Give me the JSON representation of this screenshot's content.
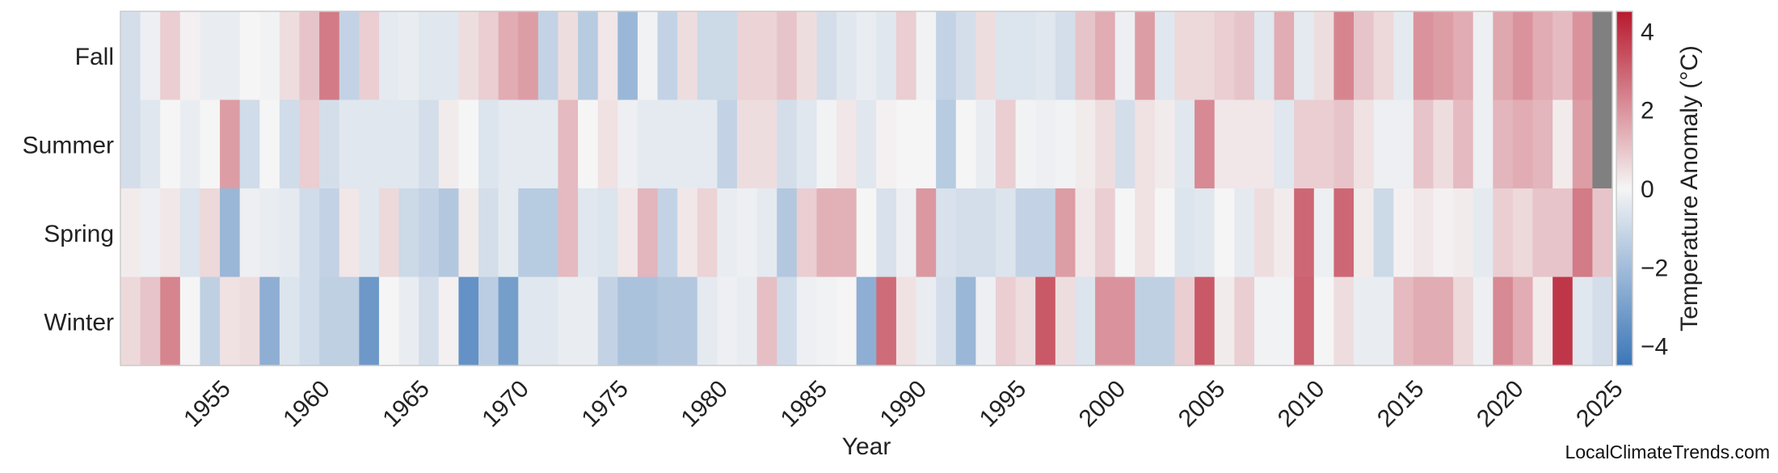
{
  "chart_data": {
    "type": "heatmap",
    "title": "",
    "xlabel": "Year",
    "colorbar_label": "Temperature Anomaly (°C)",
    "colorbar_range": [
      -4.5,
      4.5
    ],
    "colorbar_ticks": [
      -4,
      -2,
      0,
      2,
      4
    ],
    "colormap_colors": {
      "negative": "#3b76b8",
      "neutral": "#f5f5f5",
      "positive": "#b8192e",
      "missing": "#808080"
    },
    "x_start": 1951,
    "x_end": 2025,
    "x_ticks": [
      1955,
      1960,
      1965,
      1970,
      1975,
      1980,
      1985,
      1990,
      1995,
      2000,
      2005,
      2010,
      2015,
      2020,
      2025
    ],
    "rows": [
      "Fall",
      "Summer",
      "Spring",
      "Winter"
    ],
    "values": {
      "Fall": [
        -0.8,
        -0.2,
        0.8,
        0.1,
        -0.3,
        -0.3,
        0.0,
        -0.1,
        0.5,
        1.0,
        2.5,
        -1.2,
        0.8,
        -0.4,
        -0.3,
        -0.5,
        -0.5,
        0.5,
        0.8,
        1.5,
        1.8,
        -1.2,
        0.5,
        -1.5,
        0.3,
        -2.2,
        -0.1,
        -1.2,
        0.5,
        -1.0,
        -1.0,
        0.7,
        0.7,
        1.0,
        0.5,
        -0.8,
        -0.5,
        -0.3,
        -0.5,
        0.8,
        -0.1,
        -1.2,
        -0.8,
        0.5,
        -0.6,
        -0.6,
        -0.5,
        -0.8,
        1.0,
        1.5,
        -0.2,
        1.8,
        -0.5,
        0.6,
        0.6,
        0.8,
        1.0,
        -0.5,
        1.5,
        -0.4,
        0.5,
        2.3,
        1.0,
        0.6,
        -0.4,
        2.0,
        1.8,
        1.5,
        -0.2,
        1.6,
        2.0,
        1.5,
        1.2,
        2.0,
        null
      ],
      "Summer": [
        -0.8,
        -0.5,
        0.0,
        -0.3,
        0.0,
        1.8,
        -0.9,
        0.0,
        -0.9,
        0.8,
        -0.8,
        -0.5,
        -0.5,
        -0.5,
        -0.5,
        -0.8,
        0.2,
        0.0,
        -0.6,
        -0.4,
        -0.4,
        -0.4,
        1.2,
        0.0,
        0.4,
        -0.2,
        -0.4,
        -0.4,
        -0.4,
        -0.4,
        -1.2,
        0.5,
        0.5,
        -0.8,
        -0.5,
        -0.1,
        0.3,
        -0.5,
        0.1,
        0.0,
        0.0,
        -1.5,
        0.0,
        -0.3,
        0.8,
        -0.1,
        -0.2,
        -0.1,
        0.2,
        0.5,
        -0.8,
        0.4,
        0.2,
        -0.5,
        2.2,
        0.3,
        0.3,
        0.3,
        -0.5,
        0.8,
        0.8,
        1.0,
        0.4,
        -0.2,
        -0.2,
        1.0,
        0.5,
        1.2,
        -0.2,
        1.3,
        1.5,
        1.3,
        0.2,
        1.8,
        null
      ],
      "Spring": [
        0.2,
        -0.2,
        0.3,
        -0.6,
        0.6,
        -2.2,
        -0.2,
        -0.3,
        -0.4,
        -0.9,
        -1.2,
        0.3,
        -0.5,
        0.6,
        -1.0,
        -1.2,
        -1.6,
        0.2,
        -0.8,
        -0.4,
        -1.5,
        -1.5,
        1.2,
        -0.5,
        -0.6,
        0.3,
        1.3,
        -1.2,
        0.3,
        0.7,
        -0.3,
        -0.2,
        -0.4,
        -1.6,
        0.8,
        1.4,
        1.4,
        0.0,
        -0.7,
        -0.2,
        1.9,
        -0.7,
        -0.8,
        -0.8,
        -0.6,
        -1.2,
        -1.2,
        1.8,
        0.3,
        0.8,
        0.0,
        0.4,
        0.0,
        -0.6,
        -0.5,
        0.0,
        -0.4,
        0.5,
        0.2,
        2.9,
        -0.2,
        2.9,
        0.2,
        -1.0,
        0.1,
        0.3,
        0.1,
        0.2,
        -0.4,
        0.8,
        0.6,
        1.0,
        1.0,
        2.5,
        1.0
      ],
      "Winter": [
        0.6,
        1.0,
        2.3,
        0.0,
        -1.3,
        0.4,
        0.5,
        -2.5,
        -0.6,
        -0.9,
        -1.3,
        -1.3,
        -3.3,
        0.0,
        -0.3,
        -0.8,
        0.1,
        -3.5,
        -1.4,
        -3.1,
        -0.5,
        -0.5,
        -0.3,
        -0.3,
        -1.2,
        -1.8,
        -1.8,
        -1.6,
        -1.6,
        -0.4,
        -0.2,
        -0.3,
        1.1,
        -0.9,
        -0.2,
        -0.1,
        0.0,
        -2.5,
        2.8,
        0.4,
        -0.3,
        -0.8,
        -2.2,
        -0.2,
        0.8,
        0.5,
        3.2,
        0.5,
        -0.6,
        2.0,
        2.0,
        -1.3,
        -1.3,
        0.8,
        3.2,
        0.2,
        0.8,
        -0.1,
        -0.1,
        3.0,
        0.0,
        0.5,
        -0.3,
        -0.3,
        1.2,
        1.5,
        1.5,
        0.6,
        -0.2,
        2.2,
        1.5,
        0.2,
        3.9,
        -0.5,
        -0.8
      ]
    }
  },
  "watermark": "LocalClimateTrends.com"
}
